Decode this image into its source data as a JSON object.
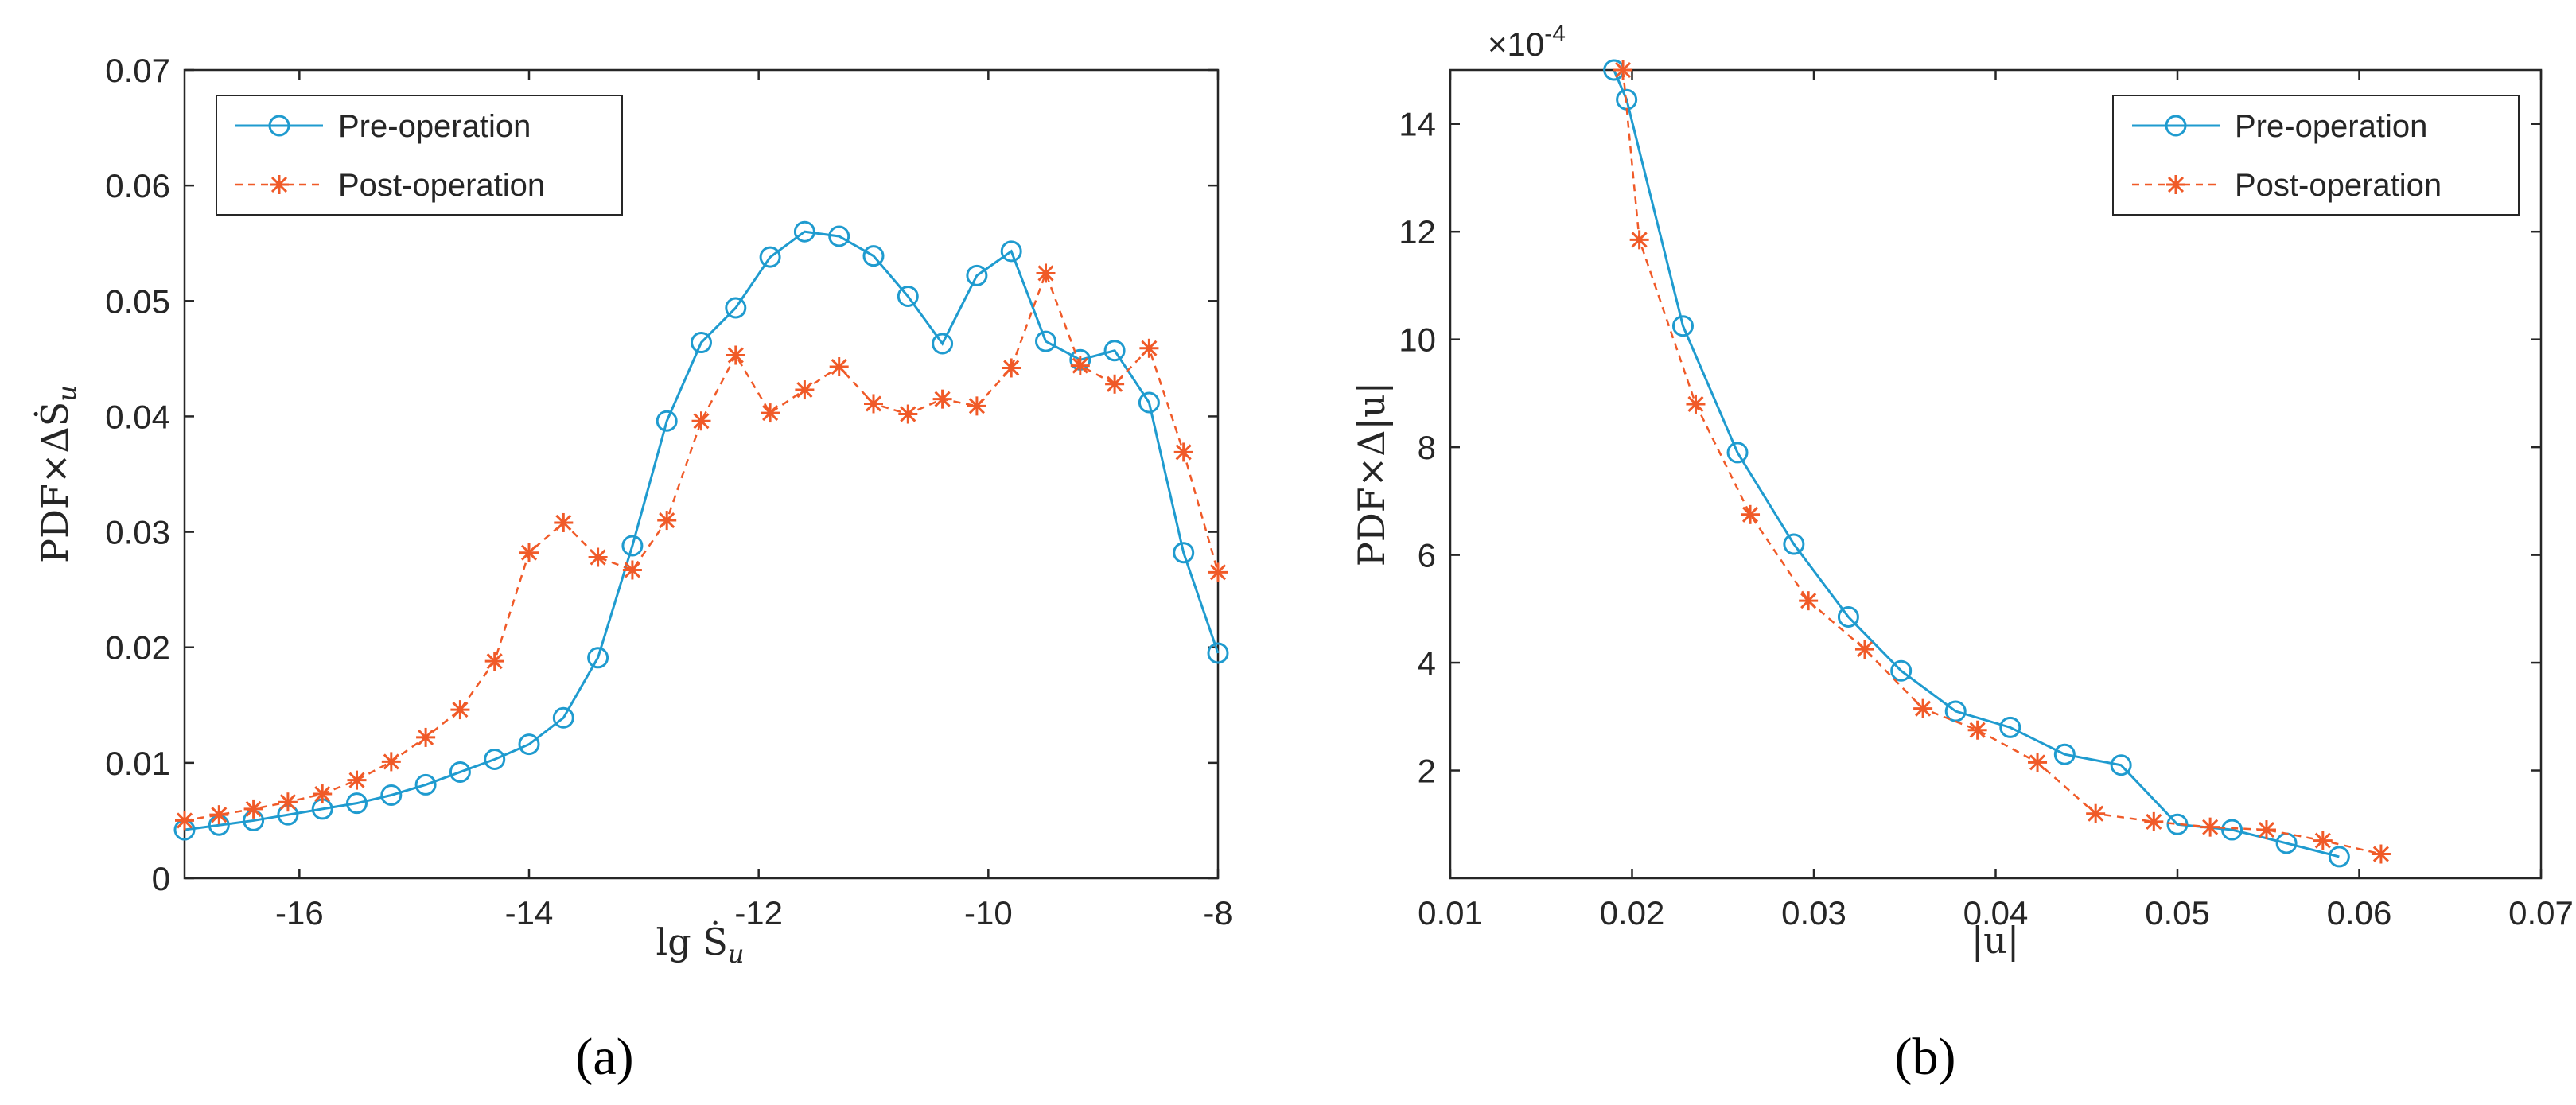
{
  "colors": {
    "pre": "#1f9bcf",
    "post": "#f05a28",
    "axis": "#262626"
  },
  "chart_data": [
    {
      "type": "line",
      "panel_label": "(a)",
      "xlabel": "lg Ṡ",
      "xlabel_sub": "u",
      "ylabel": "PDF×ΔṠ",
      "ylabel_sub": "u",
      "xlim": [
        -17,
        -8
      ],
      "ylim": [
        0,
        0.07
      ],
      "xticks": [
        -16,
        -14,
        -12,
        -10,
        -8
      ],
      "xtick_labels": [
        "-16",
        "-14",
        "-12",
        "-10",
        "-8"
      ],
      "yticks": [
        0,
        0.01,
        0.02,
        0.03,
        0.04,
        0.05,
        0.06,
        0.07
      ],
      "ytick_labels": [
        "0",
        "0.01",
        "0.02",
        "0.03",
        "0.04",
        "0.05",
        "0.06",
        "0.07"
      ],
      "legend_position": "top-left",
      "series": [
        {
          "name": "Pre-operation",
          "marker": "circle",
          "line": "solid",
          "x": [
            -17,
            -16.7,
            -16.4,
            -16.1,
            -15.8,
            -15.5,
            -15.2,
            -14.9,
            -14.6,
            -14.3,
            -14.0,
            -13.7,
            -13.4,
            -13.1,
            -12.8,
            -12.5,
            -12.2,
            -11.9,
            -11.6,
            -11.3,
            -11.0,
            -10.7,
            -10.4,
            -10.1,
            -9.8,
            -9.5,
            -9.2,
            -8.9,
            -8.6,
            -8.3,
            -8.0
          ],
          "y": [
            0.0042,
            0.0046,
            0.005,
            0.0055,
            0.006,
            0.0065,
            0.0072,
            0.0081,
            0.0092,
            0.0103,
            0.0116,
            0.0139,
            0.0191,
            0.0288,
            0.0396,
            0.0464,
            0.0494,
            0.0538,
            0.056,
            0.0556,
            0.0539,
            0.0504,
            0.0463,
            0.0522,
            0.0543,
            0.0465,
            0.0449,
            0.0457,
            0.0412,
            0.0282,
            0.0195
          ]
        },
        {
          "name": "Post-operation",
          "marker": "asterisk",
          "line": "dashed",
          "x": [
            -17,
            -16.7,
            -16.4,
            -16.1,
            -15.8,
            -15.5,
            -15.2,
            -14.9,
            -14.6,
            -14.3,
            -14.0,
            -13.7,
            -13.4,
            -13.1,
            -12.8,
            -12.5,
            -12.2,
            -11.9,
            -11.6,
            -11.3,
            -11.0,
            -10.7,
            -10.4,
            -10.1,
            -9.8,
            -9.5,
            -9.2,
            -8.9,
            -8.6,
            -8.3,
            -8.0
          ],
          "y": [
            0.005,
            0.0055,
            0.006,
            0.0066,
            0.0073,
            0.0085,
            0.0101,
            0.0122,
            0.0146,
            0.0188,
            0.0282,
            0.0308,
            0.0278,
            0.0267,
            0.031,
            0.0396,
            0.0453,
            0.0403,
            0.0423,
            0.0443,
            0.0411,
            0.0402,
            0.0415,
            0.0409,
            0.0442,
            0.0524,
            0.0444,
            0.0428,
            0.0459,
            0.0369,
            0.0265
          ]
        }
      ]
    },
    {
      "type": "line",
      "panel_label": "(b)",
      "xlabel": "|u|",
      "ylabel": "PDF×Δ|u|",
      "exponent_label": "×10",
      "exponent_power": "-4",
      "xlim": [
        0.01,
        0.07
      ],
      "ylim": [
        0,
        15
      ],
      "xticks": [
        0.01,
        0.02,
        0.03,
        0.04,
        0.05,
        0.06,
        0.07
      ],
      "xtick_labels": [
        "0.01",
        "0.02",
        "0.03",
        "0.04",
        "0.05",
        "0.06",
        "0.07"
      ],
      "yticks": [
        2,
        4,
        6,
        8,
        10,
        12,
        14
      ],
      "ytick_labels": [
        "2",
        "4",
        "6",
        "8",
        "10",
        "12",
        "14"
      ],
      "legend_position": "top-right",
      "series": [
        {
          "name": "Pre-operation",
          "marker": "circle",
          "line": "solid",
          "x": [
            0.019,
            0.0197,
            0.0228,
            0.0258,
            0.0289,
            0.0319,
            0.0348,
            0.0378,
            0.0408,
            0.0438,
            0.0469,
            0.05,
            0.053,
            0.056,
            0.0589
          ],
          "y": [
            15.0,
            14.45,
            10.25,
            7.9,
            6.2,
            4.85,
            3.85,
            3.1,
            2.8,
            2.3,
            2.1,
            1.0,
            0.9,
            0.65,
            0.4
          ]
        },
        {
          "name": "Post-operation",
          "marker": "asterisk",
          "line": "dashed",
          "x": [
            0.0195,
            0.0204,
            0.0235,
            0.0265,
            0.0297,
            0.0328,
            0.036,
            0.039,
            0.0423,
            0.0455,
            0.0487,
            0.0518,
            0.0549,
            0.058,
            0.0612
          ],
          "y": [
            15.0,
            11.85,
            8.8,
            6.75,
            5.15,
            4.25,
            3.15,
            2.75,
            2.15,
            1.2,
            1.05,
            0.95,
            0.9,
            0.7,
            0.45
          ]
        }
      ]
    }
  ]
}
